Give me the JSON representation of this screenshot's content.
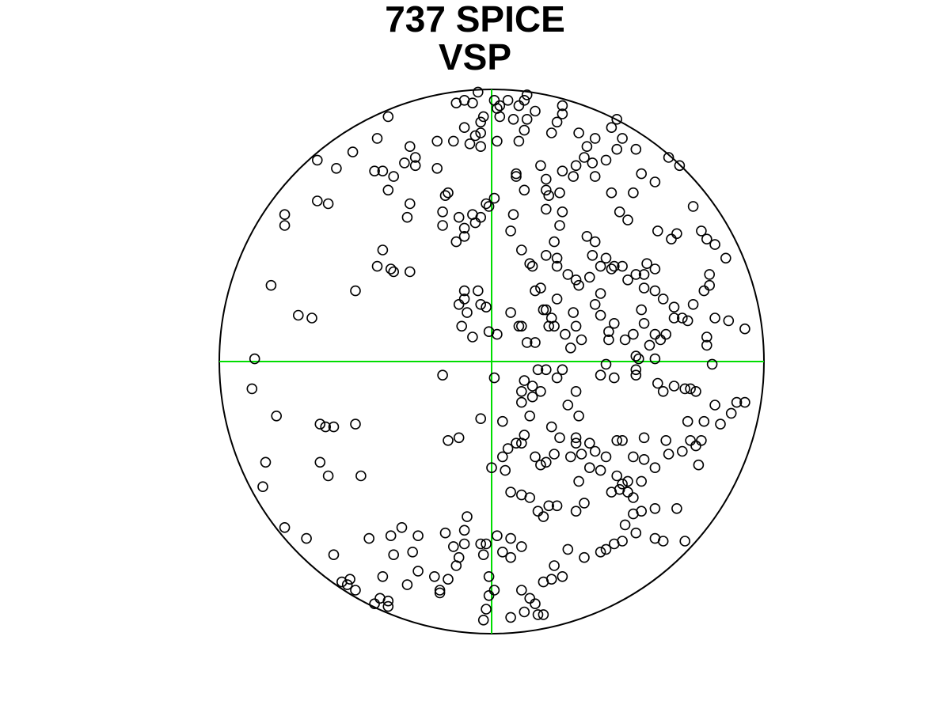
{
  "colors": {
    "background": "#ffffff",
    "circle": "#000000",
    "crosshair": "#00dd00",
    "points": "#000000"
  },
  "chart_data": {
    "type": "scatter",
    "title_lines": [
      "737 SPICE",
      "VSP"
    ],
    "xlabel": "",
    "ylabel": "",
    "projection": "polar-disc",
    "xlim": [
      -1,
      1
    ],
    "ylim": [
      -1,
      1
    ],
    "grid": false,
    "legend": "none",
    "crosshair": true,
    "marker": "open-circle",
    "points": [
      [
        -0.07,
        0.95
      ],
      [
        -0.13,
        0.95
      ],
      [
        -0.1,
        0.96
      ],
      [
        -0.05,
        0.99
      ],
      [
        -0.04,
        0.88
      ],
      [
        -0.03,
        0.9
      ],
      [
        -0.04,
        0.84
      ],
      [
        0.01,
        0.96
      ],
      [
        0.02,
        0.93
      ],
      [
        0.03,
        0.94
      ],
      [
        0.03,
        0.9
      ],
      [
        0.06,
        0.96
      ],
      [
        0.12,
        0.96
      ],
      [
        0.1,
        0.94
      ],
      [
        0.08,
        0.89
      ],
      [
        0.13,
        0.89
      ],
      [
        0.12,
        0.85
      ],
      [
        0.1,
        0.81
      ],
      [
        0.02,
        0.81
      ],
      [
        -0.06,
        0.83
      ],
      [
        -0.08,
        0.8
      ],
      [
        -0.04,
        0.79
      ],
      [
        -0.14,
        0.81
      ],
      [
        -0.1,
        0.86
      ],
      [
        -0.2,
        0.81
      ],
      [
        -0.38,
        0.9
      ],
      [
        -0.42,
        0.82
      ],
      [
        -0.3,
        0.79
      ],
      [
        -0.28,
        0.75
      ],
      [
        -0.28,
        0.72
      ],
      [
        -0.32,
        0.73
      ],
      [
        -0.4,
        0.7
      ],
      [
        -0.43,
        0.7
      ],
      [
        -0.51,
        0.77
      ],
      [
        -0.57,
        0.71
      ],
      [
        -0.64,
        0.74
      ],
      [
        -0.6,
        0.58
      ],
      [
        -0.64,
        0.59
      ],
      [
        -0.76,
        0.54
      ],
      [
        -0.76,
        0.5
      ],
      [
        -0.38,
        0.63
      ],
      [
        -0.36,
        0.68
      ],
      [
        -0.3,
        0.58
      ],
      [
        -0.31,
        0.53
      ],
      [
        -0.2,
        0.71
      ],
      [
        -0.17,
        0.61
      ],
      [
        -0.16,
        0.62
      ],
      [
        -0.18,
        0.55
      ],
      [
        -0.18,
        0.5
      ],
      [
        -0.12,
        0.53
      ],
      [
        -0.07,
        0.54
      ],
      [
        -0.06,
        0.51
      ],
      [
        -0.04,
        0.53
      ],
      [
        -0.01,
        0.57
      ],
      [
        -0.02,
        0.58
      ],
      [
        0.01,
        0.6
      ],
      [
        -0.1,
        0.46
      ],
      [
        -0.1,
        0.49
      ],
      [
        -0.13,
        0.44
      ],
      [
        0.09,
        0.68
      ],
      [
        0.09,
        0.69
      ],
      [
        0.12,
        0.63
      ],
      [
        0.08,
        0.54
      ],
      [
        0.07,
        0.48
      ],
      [
        0.11,
        0.41
      ],
      [
        0.14,
        0.36
      ],
      [
        0.2,
        0.39
      ],
      [
        0.24,
        0.38
      ],
      [
        0.23,
        0.44
      ],
      [
        0.25,
        0.5
      ],
      [
        0.26,
        0.55
      ],
      [
        0.2,
        0.56
      ],
      [
        0.21,
        0.61
      ],
      [
        0.25,
        0.62
      ],
      [
        0.26,
        0.7
      ],
      [
        0.3,
        0.68
      ],
      [
        0.31,
        0.72
      ],
      [
        0.34,
        0.75
      ],
      [
        0.37,
        0.73
      ],
      [
        0.35,
        0.79
      ],
      [
        0.42,
        0.74
      ],
      [
        0.46,
        0.78
      ],
      [
        0.48,
        0.82
      ],
      [
        0.44,
        0.86
      ],
      [
        0.46,
        0.89
      ],
      [
        0.38,
        0.82
      ],
      [
        0.32,
        0.84
      ],
      [
        0.24,
        0.88
      ],
      [
        0.26,
        0.91
      ],
      [
        0.26,
        0.94
      ],
      [
        0.13,
        0.98
      ],
      [
        0.16,
        0.92
      ],
      [
        0.22,
        0.84
      ],
      [
        0.18,
        0.72
      ],
      [
        0.2,
        0.67
      ],
      [
        0.2,
        0.63
      ],
      [
        0.38,
        0.68
      ],
      [
        0.44,
        0.62
      ],
      [
        0.47,
        0.55
      ],
      [
        0.5,
        0.52
      ],
      [
        0.52,
        0.62
      ],
      [
        0.55,
        0.69
      ],
      [
        0.6,
        0.66
      ],
      [
        0.53,
        0.78
      ],
      [
        0.65,
        0.75
      ],
      [
        0.69,
        0.72
      ],
      [
        0.74,
        0.57
      ],
      [
        0.61,
        0.48
      ],
      [
        0.68,
        0.47
      ],
      [
        0.66,
        0.45
      ],
      [
        0.79,
        0.45
      ],
      [
        0.77,
        0.48
      ],
      [
        0.82,
        0.43
      ],
      [
        0.86,
        0.38
      ],
      [
        0.8,
        0.32
      ],
      [
        0.8,
        0.28
      ],
      [
        0.78,
        0.26
      ],
      [
        0.74,
        0.21
      ],
      [
        0.67,
        0.2
      ],
      [
        0.67,
        0.16
      ],
      [
        0.7,
        0.16
      ],
      [
        0.72,
        0.15
      ],
      [
        0.64,
        0.1
      ],
      [
        0.62,
        0.08
      ],
      [
        0.82,
        0.16
      ],
      [
        0.87,
        0.15
      ],
      [
        0.93,
        0.12
      ],
      [
        0.6,
        0.34
      ],
      [
        0.57,
        0.36
      ],
      [
        0.56,
        0.32
      ],
      [
        0.53,
        0.32
      ],
      [
        0.48,
        0.35
      ],
      [
        0.45,
        0.35
      ],
      [
        0.4,
        0.35
      ],
      [
        0.37,
        0.39
      ],
      [
        0.35,
        0.46
      ],
      [
        0.38,
        0.44
      ],
      [
        0.42,
        0.38
      ],
      [
        0.44,
        0.34
      ],
      [
        0.5,
        0.3
      ],
      [
        0.56,
        0.27
      ],
      [
        0.6,
        0.26
      ],
      [
        0.63,
        0.23
      ],
      [
        0.55,
        0.19
      ],
      [
        0.56,
        0.14
      ],
      [
        0.6,
        0.1
      ],
      [
        0.58,
        0.06
      ],
      [
        0.52,
        0.1
      ],
      [
        0.49,
        0.08
      ],
      [
        0.43,
        0.08
      ],
      [
        0.43,
        0.11
      ],
      [
        0.45,
        0.14
      ],
      [
        0.4,
        0.17
      ],
      [
        0.38,
        0.21
      ],
      [
        0.4,
        0.25
      ],
      [
        0.3,
        0.18
      ],
      [
        0.27,
        0.1
      ],
      [
        0.29,
        0.05
      ],
      [
        0.33,
        0.08
      ],
      [
        0.31,
        0.13
      ],
      [
        0.23,
        0.13
      ],
      [
        0.22,
        0.16
      ],
      [
        0.24,
        0.23
      ],
      [
        0.32,
        0.28
      ],
      [
        0.31,
        0.3
      ],
      [
        0.36,
        0.31
      ],
      [
        0.28,
        0.32
      ],
      [
        0.24,
        0.35
      ],
      [
        0.18,
        0.27
      ],
      [
        0.16,
        0.26
      ],
      [
        0.11,
        0.13
      ],
      [
        0.13,
        0.07
      ],
      [
        0.19,
        0.19
      ],
      [
        0.2,
        0.19
      ],
      [
        0.21,
        0.13
      ],
      [
        0.16,
        0.07
      ],
      [
        0.02,
        0.1
      ],
      [
        -0.01,
        0.11
      ],
      [
        -0.02,
        0.2
      ],
      [
        -0.09,
        0.18
      ],
      [
        -0.1,
        0.23
      ],
      [
        -0.11,
        0.13
      ],
      [
        -0.07,
        0.09
      ],
      [
        -0.04,
        0.21
      ],
      [
        -0.05,
        0.26
      ],
      [
        -0.1,
        0.26
      ],
      [
        -0.12,
        0.21
      ],
      [
        0.1,
        0.13
      ],
      [
        0.07,
        0.18
      ],
      [
        0.15,
        0.35
      ],
      [
        -0.3,
        0.33
      ],
      [
        -0.4,
        0.41
      ],
      [
        -0.42,
        0.35
      ],
      [
        -0.37,
        0.34
      ],
      [
        -0.36,
        0.33
      ],
      [
        -0.5,
        0.26
      ],
      [
        -0.66,
        0.16
      ],
      [
        -0.71,
        0.17
      ],
      [
        -0.81,
        0.28
      ],
      [
        -0.87,
        0.01
      ],
      [
        -0.88,
        -0.1
      ],
      [
        -0.79,
        -0.2
      ],
      [
        -0.63,
        -0.23
      ],
      [
        -0.61,
        -0.24
      ],
      [
        -0.6,
        -0.42
      ],
      [
        -0.63,
        -0.37
      ],
      [
        -0.83,
        -0.37
      ],
      [
        -0.84,
        -0.46
      ],
      [
        -0.76,
        -0.61
      ],
      [
        -0.68,
        -0.65
      ],
      [
        -0.58,
        -0.71
      ],
      [
        -0.55,
        -0.81
      ],
      [
        -0.53,
        -0.82
      ],
      [
        -0.5,
        -0.84
      ],
      [
        -0.43,
        -0.89
      ],
      [
        -0.41,
        -0.87
      ],
      [
        -0.38,
        -0.88
      ],
      [
        -0.38,
        -0.9
      ],
      [
        -0.31,
        -0.82
      ],
      [
        -0.27,
        -0.77
      ],
      [
        -0.29,
        -0.7
      ],
      [
        -0.27,
        -0.64
      ],
      [
        -0.21,
        -0.79
      ],
      [
        -0.19,
        -0.84
      ],
      [
        -0.19,
        -0.85
      ],
      [
        -0.16,
        -0.8
      ],
      [
        -0.13,
        -0.75
      ],
      [
        -0.12,
        -0.72
      ],
      [
        -0.1,
        -0.67
      ],
      [
        -0.1,
        -0.62
      ],
      [
        -0.09,
        -0.57
      ],
      [
        -0.04,
        -0.67
      ],
      [
        -0.03,
        -0.71
      ],
      [
        -0.02,
        -0.67
      ],
      [
        0.02,
        -0.64
      ],
      [
        0.04,
        -0.7
      ],
      [
        0.07,
        -0.72
      ],
      [
        0.07,
        -0.65
      ],
      [
        0.11,
        -0.68
      ],
      [
        -0.01,
        -0.79
      ],
      [
        0.01,
        -0.84
      ],
      [
        -0.01,
        -0.86
      ],
      [
        -0.02,
        -0.91
      ],
      [
        -0.03,
        -0.95
      ],
      [
        0.07,
        -0.94
      ],
      [
        0.12,
        -0.92
      ],
      [
        0.16,
        -0.89
      ],
      [
        0.17,
        -0.93
      ],
      [
        0.19,
        -0.93
      ],
      [
        0.14,
        -0.87
      ],
      [
        0.11,
        -0.84
      ],
      [
        0.19,
        -0.81
      ],
      [
        0.22,
        -0.8
      ],
      [
        0.26,
        -0.79
      ],
      [
        0.23,
        -0.75
      ],
      [
        0.28,
        -0.69
      ],
      [
        0.34,
        -0.72
      ],
      [
        0.4,
        -0.7
      ],
      [
        0.42,
        -0.69
      ],
      [
        0.48,
        -0.66
      ],
      [
        0.45,
        -0.67
      ],
      [
        0.49,
        -0.6
      ],
      [
        0.53,
        -0.63
      ],
      [
        0.6,
        -0.65
      ],
      [
        0.63,
        -0.66
      ],
      [
        0.71,
        -0.66
      ],
      [
        0.68,
        -0.54
      ],
      [
        0.6,
        -0.54
      ],
      [
        0.55,
        -0.55
      ],
      [
        0.52,
        -0.56
      ],
      [
        0.52,
        -0.5
      ],
      [
        0.5,
        -0.48
      ],
      [
        0.47,
        -0.47
      ],
      [
        0.44,
        -0.48
      ],
      [
        0.46,
        -0.42
      ],
      [
        0.48,
        -0.45
      ],
      [
        0.5,
        -0.44
      ],
      [
        0.55,
        -0.44
      ],
      [
        0.6,
        -0.39
      ],
      [
        0.65,
        -0.34
      ],
      [
        0.7,
        -0.33
      ],
      [
        0.73,
        -0.29
      ],
      [
        0.75,
        -0.31
      ],
      [
        0.77,
        -0.29
      ],
      [
        0.76,
        -0.38
      ],
      [
        0.64,
        -0.29
      ],
      [
        0.56,
        -0.28
      ],
      [
        0.56,
        -0.36
      ],
      [
        0.52,
        -0.35
      ],
      [
        0.48,
        -0.29
      ],
      [
        0.46,
        -0.29
      ],
      [
        0.42,
        -0.35
      ],
      [
        0.4,
        -0.4
      ],
      [
        0.36,
        -0.39
      ],
      [
        0.32,
        -0.44
      ],
      [
        0.34,
        -0.52
      ],
      [
        0.31,
        -0.55
      ],
      [
        0.24,
        -0.53
      ],
      [
        0.21,
        -0.53
      ],
      [
        0.19,
        -0.57
      ],
      [
        0.17,
        -0.55
      ],
      [
        0.14,
        -0.5
      ],
      [
        0.11,
        -0.49
      ],
      [
        0.07,
        -0.48
      ],
      [
        0.05,
        -0.4
      ],
      [
        0.04,
        -0.35
      ],
      [
        0.06,
        -0.32
      ],
      [
        0.09,
        -0.3
      ],
      [
        0.11,
        -0.3
      ],
      [
        0.12,
        -0.27
      ],
      [
        0.22,
        -0.24
      ],
      [
        0.25,
        -0.28
      ],
      [
        0.31,
        -0.28
      ],
      [
        0.31,
        -0.3
      ],
      [
        0.33,
        -0.34
      ],
      [
        0.36,
        -0.3
      ],
      [
        0.38,
        -0.33
      ],
      [
        0.29,
        -0.35
      ],
      [
        0.23,
        -0.34
      ],
      [
        0.2,
        -0.37
      ],
      [
        0.18,
        -0.38
      ],
      [
        0.16,
        -0.35
      ],
      [
        0.14,
        -0.2
      ],
      [
        0.11,
        -0.15
      ],
      [
        0.11,
        -0.11
      ],
      [
        0.15,
        -0.13
      ],
      [
        0.18,
        -0.11
      ],
      [
        0.17,
        -0.03
      ],
      [
        0.24,
        -0.06
      ],
      [
        0.26,
        -0.03
      ],
      [
        0.31,
        -0.11
      ],
      [
        0.28,
        -0.16
      ],
      [
        0.32,
        -0.2
      ],
      [
        0.4,
        -0.05
      ],
      [
        0.45,
        -0.06
      ],
      [
        0.42,
        -0.01
      ],
      [
        0.53,
        -0.05
      ],
      [
        0.53,
        -0.03
      ],
      [
        0.61,
        -0.08
      ],
      [
        0.63,
        -0.11
      ],
      [
        0.67,
        -0.09
      ],
      [
        0.71,
        -0.1
      ],
      [
        0.73,
        -0.1
      ],
      [
        0.75,
        -0.11
      ],
      [
        0.82,
        -0.16
      ],
      [
        0.72,
        -0.22
      ],
      [
        0.78,
        -0.22
      ],
      [
        0.84,
        -0.23
      ],
      [
        0.88,
        -0.19
      ],
      [
        0.9,
        -0.15
      ],
      [
        0.93,
        -0.15
      ],
      [
        0.81,
        -0.01
      ],
      [
        0.79,
        0.06
      ],
      [
        0.79,
        0.09
      ],
      [
        0.6,
        0.01
      ],
      [
        0.54,
        0.01
      ],
      [
        0.53,
        0.02
      ],
      [
        0.2,
        -0.03
      ],
      [
        0.15,
        -0.09
      ],
      [
        0.12,
        -0.07
      ],
      [
        -0.18,
        -0.05
      ],
      [
        0.01,
        -0.06
      ],
      [
        -0.16,
        -0.29
      ],
      [
        -0.12,
        -0.28
      ],
      [
        -0.04,
        -0.21
      ],
      [
        0.04,
        -0.22
      ],
      [
        0.0,
        -0.39
      ],
      [
        -0.48,
        -0.42
      ],
      [
        -0.5,
        -0.23
      ],
      [
        -0.58,
        -0.24
      ],
      [
        -0.33,
        -0.61
      ],
      [
        -0.37,
        -0.64
      ],
      [
        -0.45,
        -0.65
      ],
      [
        -0.52,
        -0.8
      ],
      [
        -0.36,
        -0.71
      ],
      [
        -0.4,
        -0.79
      ],
      [
        -0.17,
        -0.63
      ],
      [
        -0.14,
        -0.68
      ]
    ]
  }
}
